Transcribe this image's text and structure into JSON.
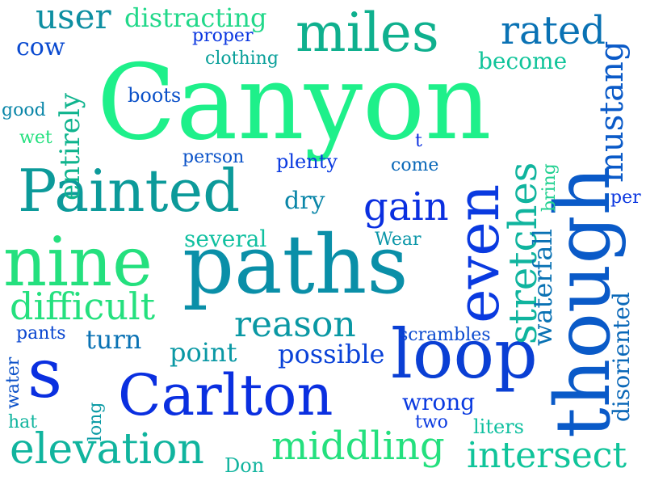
{
  "words": [
    {
      "key": "canyon",
      "text": "Canyon",
      "color": "#1ef08a"
    },
    {
      "key": "paths",
      "text": "paths",
      "color": "#0a8fa8"
    },
    {
      "key": "painted",
      "text": "Painted",
      "color": "#0c9a9a"
    },
    {
      "key": "nine",
      "text": "nine",
      "color": "#24e07e"
    },
    {
      "key": "carlton",
      "text": "Carlton",
      "color": "#0a2fe0"
    },
    {
      "key": "s",
      "text": "s",
      "color": "#0a2fe0"
    },
    {
      "key": "loop",
      "text": "loop",
      "color": "#0a3fd4"
    },
    {
      "key": "though",
      "text": "though",
      "color": "#0a5ac8"
    },
    {
      "key": "even",
      "text": "even",
      "color": "#0a3ae0"
    },
    {
      "key": "miles",
      "text": "miles",
      "color": "#0fb08e"
    },
    {
      "key": "rated",
      "text": "rated",
      "color": "#0a72b4"
    },
    {
      "key": "user",
      "text": "user",
      "color": "#0e8fa2"
    },
    {
      "key": "distracting",
      "text": "distracting",
      "color": "#22d88a"
    },
    {
      "key": "cow",
      "text": "cow",
      "color": "#0a4ad0"
    },
    {
      "key": "proper",
      "text": "proper",
      "color": "#0a36e0"
    },
    {
      "key": "clothing",
      "text": "clothing",
      "color": "#0aa09a"
    },
    {
      "key": "become",
      "text": "become",
      "color": "#10c49a"
    },
    {
      "key": "boots",
      "text": "boots",
      "color": "#0a50c8"
    },
    {
      "key": "good",
      "text": "good",
      "color": "#0a86a8"
    },
    {
      "key": "wet",
      "text": "wet",
      "color": "#24e07e"
    },
    {
      "key": "entirely",
      "text": "entirely",
      "color": "#10b48e"
    },
    {
      "key": "person",
      "text": "person",
      "color": "#0a52c8"
    },
    {
      "key": "plenty",
      "text": "plenty",
      "color": "#0a3ae0"
    },
    {
      "key": "t",
      "text": "t",
      "color": "#0a2fe0"
    },
    {
      "key": "come",
      "text": "come",
      "color": "#0a68b8"
    },
    {
      "key": "mustang",
      "text": "mustang",
      "color": "#0a5ac8"
    },
    {
      "key": "dry",
      "text": "dry",
      "color": "#0a86a8"
    },
    {
      "key": "gain",
      "text": "gain",
      "color": "#0a2fe0"
    },
    {
      "key": "stretches",
      "text": "stretches",
      "color": "#10b49e"
    },
    {
      "key": "bring",
      "text": "bring",
      "color": "#20d090"
    },
    {
      "key": "per",
      "text": "per",
      "color": "#0a36e0"
    },
    {
      "key": "several",
      "text": "several",
      "color": "#10c0a0"
    },
    {
      "key": "wear",
      "text": "Wear",
      "color": "#0a96a8"
    },
    {
      "key": "difficult",
      "text": "difficult",
      "color": "#24e07e"
    },
    {
      "key": "reason",
      "text": "reason",
      "color": "#0a98a4"
    },
    {
      "key": "waterfall",
      "text": "waterfall",
      "color": "#0a72b4"
    },
    {
      "key": "disoriented",
      "text": "disoriented",
      "color": "#0a68b8"
    },
    {
      "key": "pants",
      "text": "pants",
      "color": "#0a46d0"
    },
    {
      "key": "turn",
      "text": "turn",
      "color": "#0a72b4"
    },
    {
      "key": "point",
      "text": "point",
      "color": "#0a98a4"
    },
    {
      "key": "possible",
      "text": "possible",
      "color": "#0a42d8"
    },
    {
      "key": "scrambles",
      "text": "scrambles",
      "color": "#0a4ad0"
    },
    {
      "key": "water",
      "text": "water",
      "color": "#0a50c8"
    },
    {
      "key": "long",
      "text": "long",
      "color": "#0a9aa4"
    },
    {
      "key": "hat",
      "text": "hat",
      "color": "#10b49e"
    },
    {
      "key": "wrong",
      "text": "wrong",
      "color": "#0a3ae0"
    },
    {
      "key": "two",
      "text": "two",
      "color": "#0a3ae0"
    },
    {
      "key": "liters",
      "text": "liters",
      "color": "#10c0a0"
    },
    {
      "key": "elevation",
      "text": "elevation",
      "color": "#10b49e"
    },
    {
      "key": "middling",
      "text": "middling",
      "color": "#24e07e"
    },
    {
      "key": "intersect",
      "text": "intersect",
      "color": "#10c49a"
    },
    {
      "key": "don",
      "text": "Don",
      "color": "#10b49e"
    }
  ]
}
